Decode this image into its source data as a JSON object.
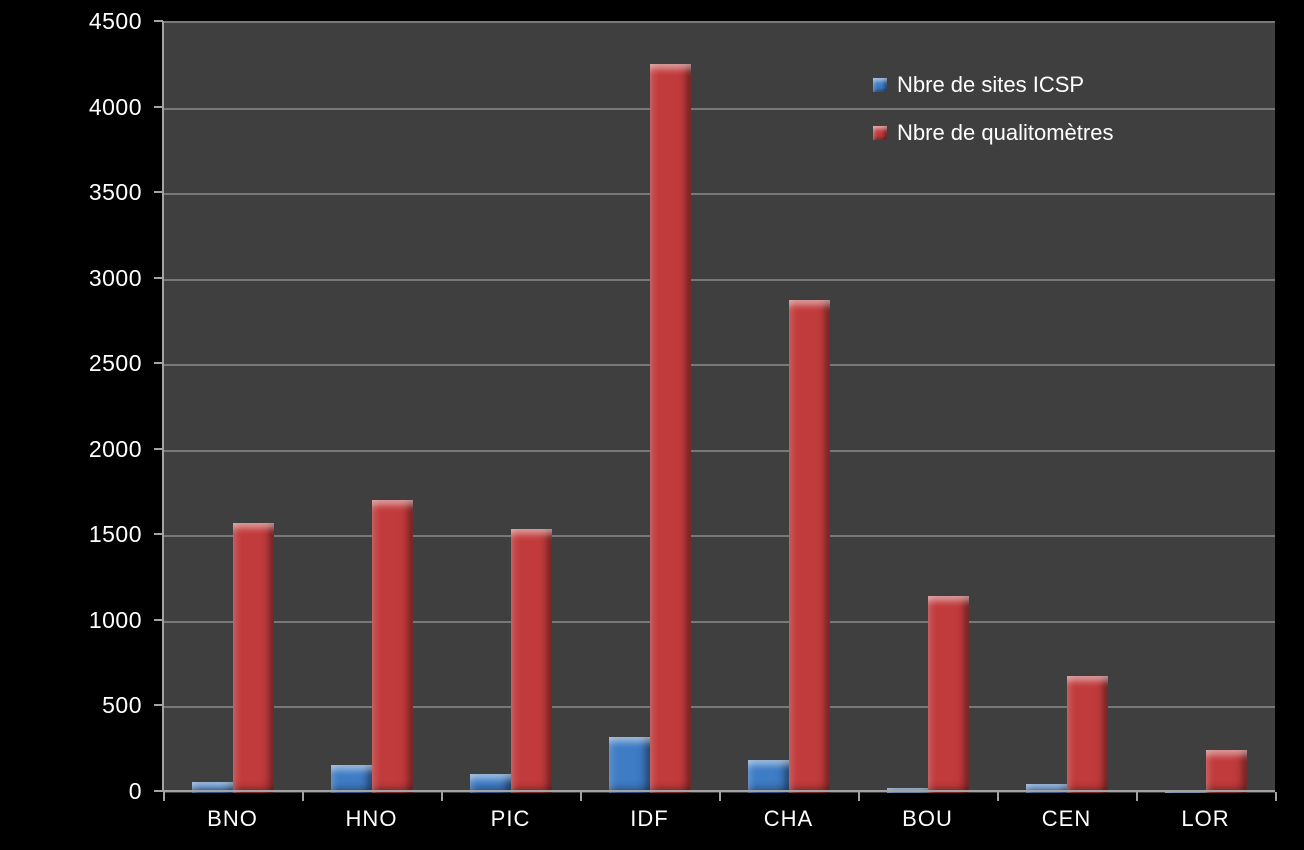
{
  "chart_data": {
    "type": "bar",
    "title": "",
    "categories": [
      "BNO",
      "HNO",
      "PIC",
      "IDF",
      "CHA",
      "BOU",
      "CEN",
      "LOR"
    ],
    "series": [
      {
        "name": "Nbre de sites ICSP",
        "color": "#3E7CC6",
        "values": [
          65,
          165,
          110,
          330,
          190,
          30,
          55,
          15
        ]
      },
      {
        "name": "Nbre de qualitomètres",
        "color": "#C23B3C",
        "values": [
          1580,
          1710,
          1540,
          4260,
          2880,
          1150,
          685,
          250
        ]
      }
    ],
    "xlabel": "",
    "ylabel": "",
    "ylim": [
      0,
      4500
    ],
    "ytick_step": 500,
    "grid": "horizontal",
    "legend_position": "top-right",
    "colors": {
      "canvas_background": "#000000",
      "plot_background": "#3F3F3F",
      "gridline": "#787878",
      "axis": "#A3A3A3",
      "text": "#FFFFFF"
    }
  }
}
